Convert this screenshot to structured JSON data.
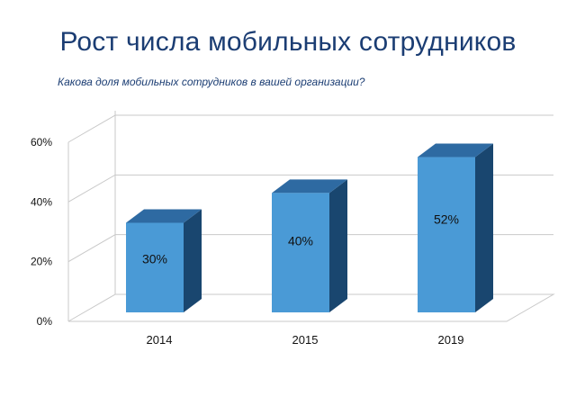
{
  "chart_data": {
    "type": "bar",
    "title": "Рост числа мобильных сотрудников",
    "subtitle": "Какова доля мобильных сотрудников в вашей организации?",
    "categories": [
      "2014",
      "2015",
      "2019"
    ],
    "values": [
      30,
      40,
      52
    ],
    "value_labels": [
      "30%",
      "40%",
      "52%"
    ],
    "y_ticks": [
      0,
      20,
      40,
      60
    ],
    "y_tick_labels": [
      "0%",
      "20%",
      "40%",
      "60%"
    ],
    "ylim": [
      0,
      60
    ],
    "grid": true,
    "style": "3d-column",
    "colors": {
      "front": "#4a9ad6",
      "top": "#2e6aa2",
      "side": "#19466f"
    }
  }
}
